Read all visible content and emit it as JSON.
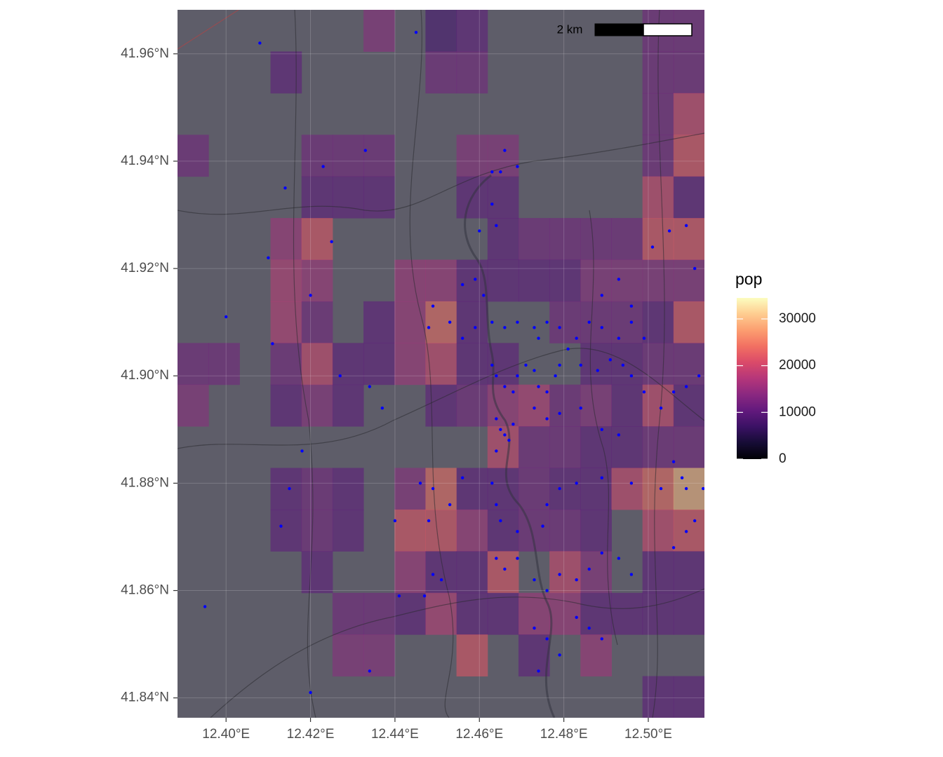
{
  "chart_data": {
    "type": "raster-map",
    "xlim": [
      12.3885,
      12.5133
    ],
    "ylim": [
      41.8363,
      41.9682
    ],
    "xticks": [
      {
        "value": 12.4,
        "label": "12.40°E"
      },
      {
        "value": 12.42,
        "label": "12.42°E"
      },
      {
        "value": 12.44,
        "label": "12.44°E"
      },
      {
        "value": 12.46,
        "label": "12.46°E"
      },
      {
        "value": 12.48,
        "label": "12.48°E"
      },
      {
        "value": 12.5,
        "label": "12.50°E"
      }
    ],
    "yticks": [
      {
        "value": 41.84,
        "label": "41.84°N"
      },
      {
        "value": 41.86,
        "label": "41.86°N"
      },
      {
        "value": 41.88,
        "label": "41.88°N"
      },
      {
        "value": 41.9,
        "label": "41.90°N"
      },
      {
        "value": 41.92,
        "label": "41.92°N"
      },
      {
        "value": 41.94,
        "label": "41.94°N"
      },
      {
        "value": 41.96,
        "label": "41.96°N"
      }
    ],
    "grid": true,
    "scale_bar": "2 km",
    "legend": {
      "title": "pop",
      "limits": [
        0,
        34500
      ],
      "ticks": [
        0,
        10000,
        20000,
        30000
      ],
      "palette": "magma"
    },
    "raster": [
      [
        null,
        null,
        null,
        null,
        null,
        null,
        14000,
        null,
        8000,
        10000,
        null,
        null,
        null,
        null,
        null,
        12000,
        12000
      ],
      [
        null,
        null,
        null,
        10000,
        null,
        null,
        null,
        null,
        12000,
        12000,
        null,
        null,
        null,
        null,
        null,
        12000,
        12000
      ],
      [
        null,
        null,
        null,
        null,
        null,
        null,
        null,
        null,
        null,
        null,
        null,
        null,
        null,
        null,
        null,
        12000,
        20000
      ],
      [
        12000,
        null,
        null,
        null,
        12000,
        12000,
        12000,
        null,
        null,
        14000,
        14000,
        null,
        null,
        null,
        null,
        12000,
        22000
      ],
      [
        null,
        null,
        null,
        null,
        10000,
        10000,
        10000,
        null,
        null,
        10000,
        10000,
        null,
        null,
        null,
        null,
        20000,
        10000
      ],
      [
        null,
        null,
        null,
        16000,
        22000,
        null,
        null,
        null,
        null,
        null,
        10000,
        12000,
        12000,
        12000,
        12000,
        22000,
        22000
      ],
      [
        null,
        null,
        null,
        18000,
        16000,
        null,
        null,
        16000,
        16000,
        10000,
        10000,
        10000,
        10000,
        14000,
        14000,
        14000,
        14000
      ],
      [
        null,
        null,
        null,
        18000,
        12000,
        null,
        10000,
        16000,
        24000,
        10000,
        null,
        null,
        12000,
        12000,
        12000,
        10000,
        22000
      ],
      [
        12000,
        12000,
        null,
        12000,
        20000,
        10000,
        10000,
        16000,
        20000,
        10000,
        10000,
        null,
        null,
        10000,
        10000,
        12000,
        12000
      ],
      [
        14000,
        null,
        null,
        10000,
        14000,
        10000,
        null,
        null,
        10000,
        12000,
        16000,
        18000,
        12000,
        14000,
        10000,
        20000,
        10000
      ],
      [
        null,
        null,
        null,
        null,
        null,
        null,
        null,
        null,
        null,
        null,
        20000,
        12000,
        12000,
        10000,
        10000,
        12000,
        12000
      ],
      [
        null,
        null,
        null,
        10000,
        12000,
        10000,
        null,
        14000,
        24000,
        10000,
        10000,
        12000,
        10000,
        10000,
        20000,
        24000,
        30000
      ],
      [
        null,
        null,
        null,
        10000,
        12000,
        10000,
        null,
        22000,
        22000,
        16000,
        10000,
        12000,
        12000,
        10000,
        null,
        20000,
        22000
      ],
      [
        null,
        null,
        null,
        null,
        10000,
        null,
        null,
        16000,
        10000,
        10000,
        22000,
        null,
        20000,
        14000,
        null,
        10000,
        10000
      ],
      [
        null,
        null,
        null,
        null,
        null,
        12000,
        12000,
        10000,
        18000,
        10000,
        10000,
        16000,
        16000,
        10000,
        10000,
        10000,
        10000
      ],
      [
        null,
        null,
        null,
        null,
        null,
        14000,
        14000,
        null,
        null,
        22000,
        null,
        10000,
        null,
        16000,
        null,
        null,
        null
      ],
      [
        null,
        null,
        null,
        null,
        null,
        null,
        null,
        null,
        null,
        null,
        null,
        null,
        null,
        null,
        null,
        10000,
        10000
      ]
    ],
    "points": {
      "color": "#0000ff",
      "x": [
        12.408,
        12.445,
        12.414,
        12.423,
        12.433,
        12.425,
        12.4,
        12.411,
        12.41,
        12.42,
        12.427,
        12.434,
        12.437,
        12.418,
        12.415,
        12.413,
        12.395,
        12.42,
        12.434,
        12.463,
        12.465,
        12.466,
        12.469,
        12.463,
        12.46,
        12.464,
        12.456,
        12.459,
        12.461,
        12.449,
        12.448,
        12.453,
        12.456,
        12.459,
        12.463,
        12.466,
        12.469,
        12.473,
        12.474,
        12.476,
        12.479,
        12.483,
        12.486,
        12.489,
        12.493,
        12.496,
        12.499,
        12.463,
        12.464,
        12.466,
        12.468,
        12.469,
        12.471,
        12.473,
        12.474,
        12.476,
        12.478,
        12.479,
        12.481,
        12.484,
        12.488,
        12.491,
        12.494,
        12.496,
        12.499,
        12.503,
        12.506,
        12.509,
        12.512,
        12.464,
        12.465,
        12.466,
        12.467,
        12.464,
        12.468,
        12.473,
        12.476,
        12.479,
        12.484,
        12.489,
        12.493,
        12.463,
        12.464,
        12.465,
        12.469,
        12.475,
        12.476,
        12.479,
        12.483,
        12.489,
        12.496,
        12.503,
        12.506,
        12.508,
        12.509,
        12.513,
        12.446,
        12.449,
        12.453,
        12.456,
        12.448,
        12.44,
        12.449,
        12.451,
        12.441,
        12.447,
        12.464,
        12.466,
        12.469,
        12.473,
        12.476,
        12.479,
        12.483,
        12.486,
        12.489,
        12.493,
        12.496,
        12.483,
        12.486,
        12.489,
        12.473,
        12.476,
        12.479,
        12.474,
        12.506,
        12.509,
        12.511,
        12.501,
        12.505,
        12.509,
        12.511,
        12.493,
        12.489,
        12.496
      ],
      "y": [
        41.962,
        41.964,
        41.935,
        41.939,
        41.942,
        41.925,
        41.911,
        41.906,
        41.922,
        41.915,
        41.9,
        41.898,
        41.894,
        41.886,
        41.879,
        41.872,
        41.857,
        41.841,
        41.845,
        41.938,
        41.938,
        41.942,
        41.939,
        41.932,
        41.927,
        41.928,
        41.917,
        41.918,
        41.915,
        41.913,
        41.909,
        41.91,
        41.907,
        41.909,
        41.91,
        41.909,
        41.91,
        41.909,
        41.907,
        41.91,
        41.909,
        41.907,
        41.91,
        41.909,
        41.907,
        41.91,
        41.907,
        41.902,
        41.9,
        41.898,
        41.897,
        41.9,
        41.902,
        41.901,
        41.898,
        41.897,
        41.9,
        41.902,
        41.905,
        41.902,
        41.901,
        41.903,
        41.902,
        41.9,
        41.897,
        41.894,
        41.897,
        41.898,
        41.9,
        41.892,
        41.89,
        41.889,
        41.888,
        41.886,
        41.891,
        41.894,
        41.892,
        41.893,
        41.894,
        41.89,
        41.889,
        41.88,
        41.876,
        41.873,
        41.871,
        41.872,
        41.876,
        41.879,
        41.88,
        41.881,
        41.88,
        41.879,
        41.884,
        41.881,
        41.879,
        41.879,
        41.88,
        41.879,
        41.876,
        41.881,
        41.873,
        41.873,
        41.863,
        41.862,
        41.859,
        41.859,
        41.866,
        41.864,
        41.866,
        41.862,
        41.86,
        41.863,
        41.862,
        41.864,
        41.867,
        41.866,
        41.863,
        41.855,
        41.853,
        41.851,
        41.853,
        41.851,
        41.848,
        41.845,
        41.868,
        41.871,
        41.873,
        41.924,
        41.927,
        41.928,
        41.92,
        41.918,
        41.915,
        41.913
      ]
    }
  }
}
